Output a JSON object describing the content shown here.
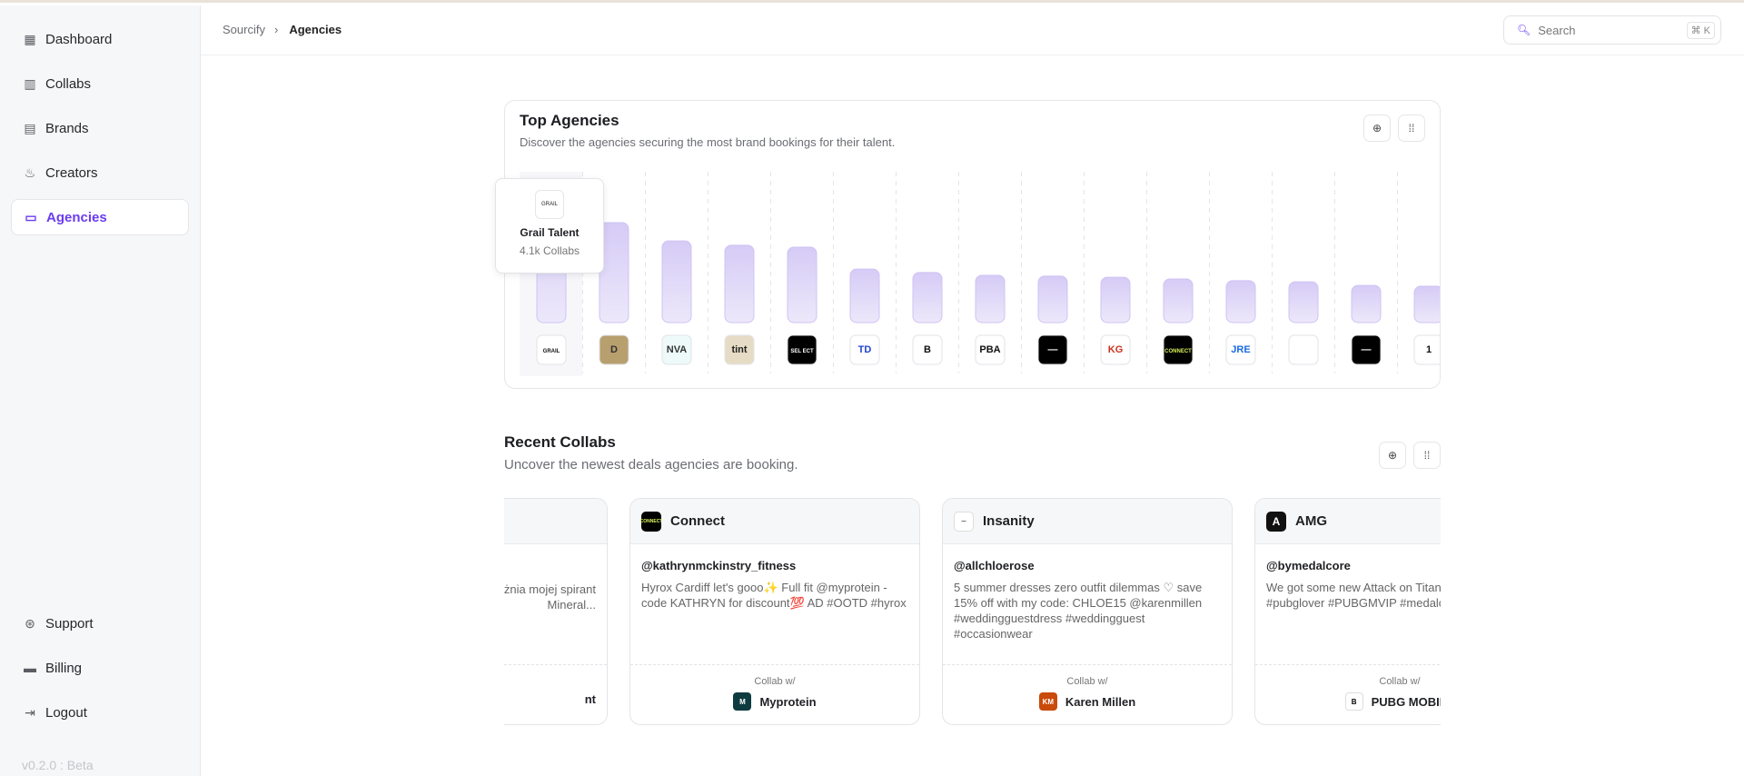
{
  "sidebar": {
    "items": [
      {
        "label": "Dashboard",
        "icon": "dashboard-icon"
      },
      {
        "label": "Collabs",
        "icon": "chart-icon"
      },
      {
        "label": "Brands",
        "icon": "store-icon"
      },
      {
        "label": "Creators",
        "icon": "flame-icon"
      },
      {
        "label": "Agencies",
        "icon": "briefcase-icon",
        "active": true
      }
    ],
    "bottom": [
      {
        "label": "Support",
        "icon": "lifebuoy-icon"
      },
      {
        "label": "Billing",
        "icon": "credit-card-icon"
      },
      {
        "label": "Logout",
        "icon": "logout-icon"
      }
    ],
    "version": "v0.2.0 : Beta"
  },
  "header": {
    "breadcrumb": [
      "Sourcify",
      "Agencies"
    ],
    "search_placeholder": "Search",
    "shortcut": "⌘ K"
  },
  "top_agencies": {
    "title": "Top Agencies",
    "subtitle": "Discover the agencies securing the most brand bookings for their talent.",
    "tooltip": {
      "name": "Grail Talent",
      "value": "4.1k Collabs",
      "logo_text": "GRAIL"
    }
  },
  "chart_data": {
    "type": "bar",
    "unit": "Collabs",
    "accent": "#d9cff7",
    "categories": [
      "Grail Talent",
      "",
      "",
      "",
      "",
      "",
      "",
      "",
      "",
      "",
      "Connect",
      "",
      "",
      "",
      ""
    ],
    "logos": [
      {
        "text": "GRAIL",
        "bg": "#ffffff",
        "fg": "#111"
      },
      {
        "text": "D",
        "bg": "#b89f6e",
        "fg": "#333"
      },
      {
        "text": "NVA",
        "bg": "#eefafa",
        "fg": "#333"
      },
      {
        "text": "tint",
        "bg": "#e6dcc6",
        "fg": "#222"
      },
      {
        "text": "SEL ECT",
        "bg": "#000000",
        "fg": "#fff"
      },
      {
        "text": "TD",
        "bg": "#ffffff",
        "fg": "#2043d0"
      },
      {
        "text": "B",
        "bg": "#ffffff",
        "fg": "#111"
      },
      {
        "text": "PBA",
        "bg": "#ffffff",
        "fg": "#111"
      },
      {
        "text": "—",
        "bg": "#000000",
        "fg": "#fff"
      },
      {
        "text": "KG",
        "bg": "#ffffff",
        "fg": "#c8321e"
      },
      {
        "text": "CONNECT",
        "bg": "#000000",
        "fg": "#d7f25a"
      },
      {
        "text": "JRE",
        "bg": "#ffffff",
        "fg": "#1a6be0"
      },
      {
        "text": "",
        "bg": "#ffffff",
        "fg": "#111"
      },
      {
        "text": "—",
        "bg": "#000000",
        "fg": "#fff"
      },
      {
        "text": "1",
        "bg": "#ffffff",
        "fg": "#111"
      }
    ],
    "values": [
      4100,
      3550,
      2900,
      2750,
      2680,
      1900,
      1780,
      1680,
      1650,
      1610,
      1550,
      1490,
      1450,
      1320,
      1290
    ]
  },
  "recent_collabs": {
    "title": "Recent Collabs",
    "subtitle": "Uncover the newest deals agencies are booking.",
    "collab_with_label": "Collab w/",
    "cards": [
      {
        "agency": "",
        "logo_bg": "#fff",
        "handle": "",
        "text": "plej, a to sprzyja ę czegoś, co rażnia mojej spirant Mineral...",
        "brand": "nt",
        "brand_bg": "#fff"
      },
      {
        "agency": "Connect",
        "logo_bg": "#000",
        "handle": "@kathrynmckinstry_fitness",
        "text": "Hyrox Cardiff let's gooo✨ Full fit @myprotein - code KATHRYN for discount💯 AD #OOTD #hyrox",
        "brand": "Myprotein",
        "brand_bg": "#0e3b40"
      },
      {
        "agency": "Insanity",
        "logo_bg": "#fff",
        "handle": "@allchloerose",
        "text": "5 summer dresses zero outfit dilemmas ♡ save 15% off with my code: CHLOE15 @karenmillen  #weddingguestdress #weddingguest #occasionwear",
        "brand": "Karen Millen",
        "brand_bg": "#c94a0a"
      },
      {
        "agency": "AMG",
        "logo_bg": "#111",
        "handle": "@bymedalcore",
        "text": "We got some new Attack on Titan game 👀 #PUBGMOBILE #pubgm #pubglover #PUBGMVIP #medalcore #attackontitan",
        "brand": "PUBG MOBILE",
        "brand_bg": "#fff"
      }
    ]
  }
}
